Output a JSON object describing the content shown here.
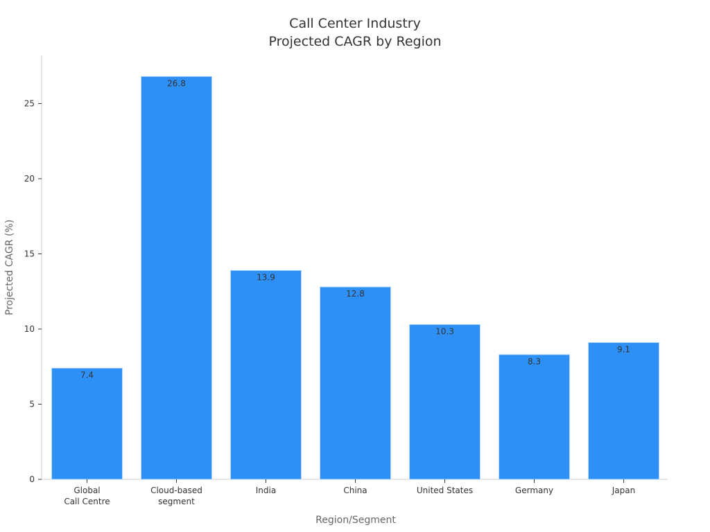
{
  "chart_data": {
    "type": "bar",
    "title_lines": [
      "Call Center Industry",
      "Projected CAGR by Region"
    ],
    "xlabel": "Region/Segment",
    "ylabel": "Projected CAGR (%)",
    "categories": [
      [
        "Global",
        "Call Centre"
      ],
      [
        "Cloud-based",
        "segment"
      ],
      [
        "India"
      ],
      [
        "China"
      ],
      [
        "United States"
      ],
      [
        "Germany"
      ],
      [
        "Japan"
      ]
    ],
    "values": [
      7.4,
      26.8,
      13.9,
      12.8,
      10.3,
      8.3,
      9.1
    ],
    "value_labels": [
      "7.4",
      "26.8",
      "13.9",
      "12.8",
      "10.3",
      "8.3",
      "9.1"
    ],
    "yticks": [
      0,
      5,
      10,
      15,
      20,
      25
    ],
    "ytick_labels": [
      "0",
      "5",
      "10",
      "15",
      "20",
      "25"
    ],
    "ylim": [
      0,
      28.2
    ],
    "bar_color": "#2e90f5",
    "grid": false,
    "legend": "none"
  }
}
